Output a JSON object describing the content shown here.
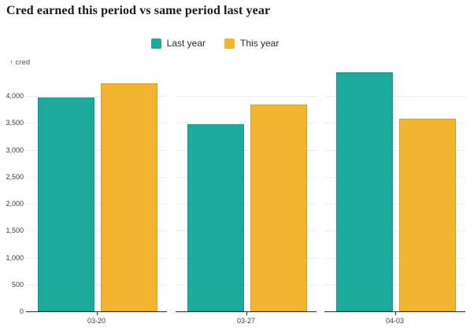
{
  "header": {
    "title": "Cred earned this period vs same period last year"
  },
  "y_axis": {
    "arrow_icon": "↑",
    "title": "cred"
  },
  "chart_data": {
    "type": "bar",
    "title": "Cred earned this period vs same period last year",
    "ylabel": "cred",
    "xlabel": "",
    "categories": [
      "03-20",
      "03-27",
      "04-03"
    ],
    "series": [
      {
        "name": "Last year",
        "color": "#1caa9b",
        "values": [
          3970,
          3480,
          4440
        ]
      },
      {
        "name": "This year",
        "color": "#f3b430",
        "values": [
          4240,
          3840,
          3580
        ]
      }
    ],
    "yticks": [
      0,
      500,
      1000,
      1500,
      2000,
      2500,
      3000,
      3500,
      4000
    ],
    "ytick_labels": [
      "0",
      "500",
      "1,000",
      "1,500",
      "2,000",
      "2,500",
      "3,000",
      "3,500",
      "4,000"
    ],
    "ylim": [
      0,
      4500
    ],
    "grid": true,
    "legend_position": "top-center"
  }
}
